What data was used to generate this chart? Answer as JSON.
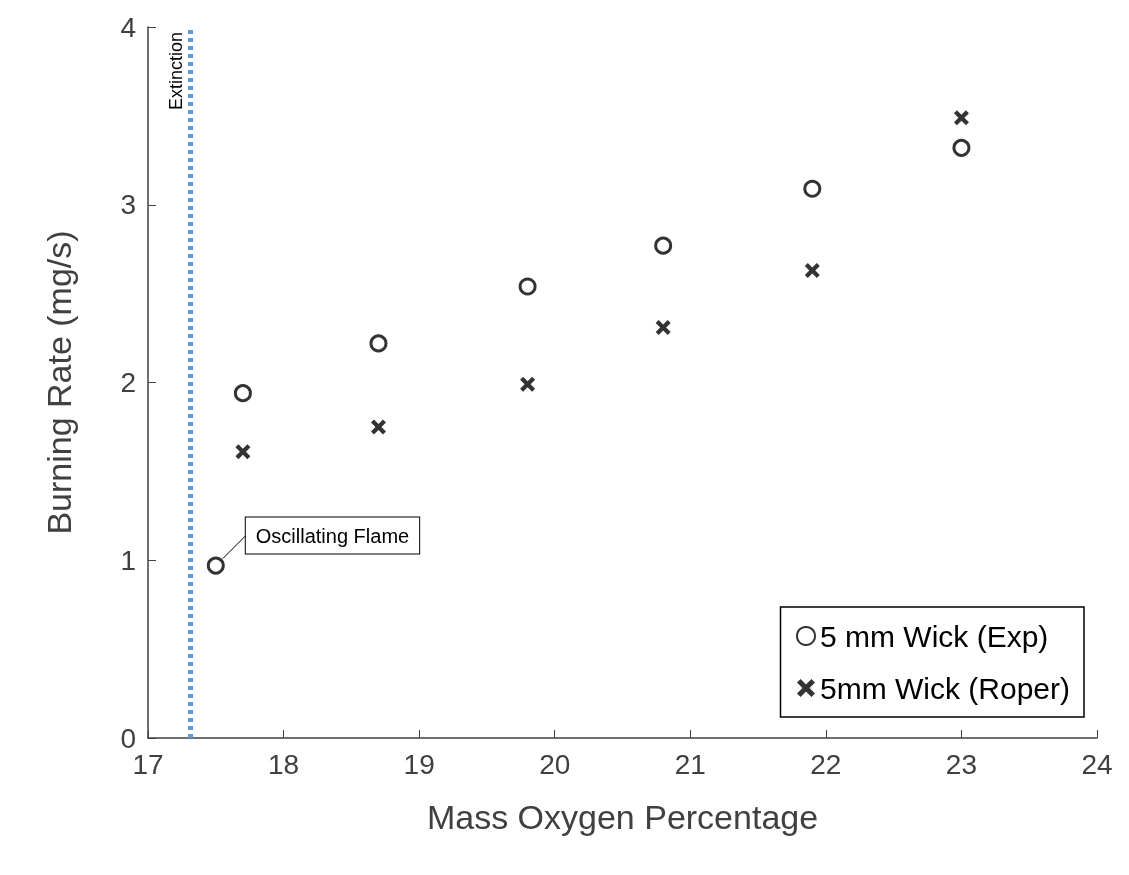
{
  "chart_data": {
    "type": "scatter",
    "xlabel": "Mass Oxygen Percentage",
    "ylabel": "Burning Rate (mg/s)",
    "xlim": [
      17,
      24
    ],
    "xticks": [
      17,
      18,
      19,
      20,
      21,
      22,
      23,
      24
    ],
    "ylim": [
      0,
      4
    ],
    "yticks": [
      0,
      1,
      2,
      3,
      4
    ],
    "grid": false,
    "legend": "bottom right",
    "series": [
      {
        "name": "5 mm Wick (Exp)",
        "color": "#000000",
        "marker": "circle",
        "x": [
          17.5,
          17.7,
          18.7,
          19.8,
          20.8,
          21.9,
          23.0
        ],
        "values": [
          0.97,
          1.94,
          2.22,
          2.54,
          2.77,
          3.09,
          3.32
        ]
      },
      {
        "name": "5mm Wick (Roper)",
        "color": "#000000",
        "marker": "cross",
        "x": [
          17.7,
          18.7,
          19.8,
          20.8,
          21.9,
          23.0
        ],
        "values": [
          1.61,
          1.75,
          1.99,
          2.31,
          2.63,
          3.49
        ]
      }
    ],
    "ref_lines": [
      {
        "axis": "x",
        "value": 17.31,
        "label": "Extinction",
        "color": "#5b9bd5",
        "line_style": "dotted"
      }
    ],
    "annotations": [
      {
        "text": "Oscillating Flame",
        "x": 17.5,
        "y": 0.97
      }
    ]
  }
}
